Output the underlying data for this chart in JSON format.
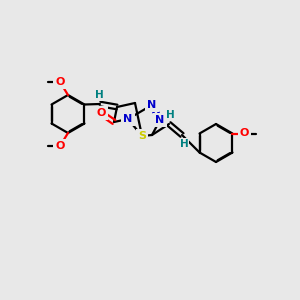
{
  "bg_color": "#e8e8e8",
  "bond_color": "#000000",
  "atom_colors": {
    "O": "#ff0000",
    "N": "#0000cc",
    "S": "#cccc00",
    "H": "#008080",
    "C": "#000000"
  },
  "title": ""
}
